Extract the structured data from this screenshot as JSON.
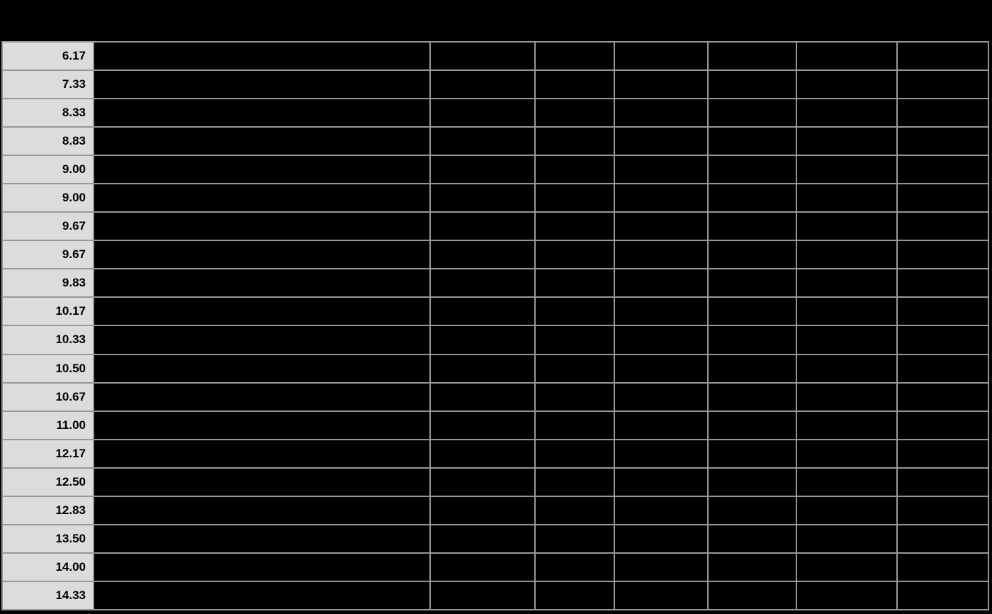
{
  "page": {
    "background_color": "#000000",
    "border_color": "#989898",
    "row_header_bg_color": "#dcdcdc",
    "row_header_text_color": "#000000"
  },
  "header": {
    "title": ""
  },
  "table": {
    "visible_column_index": 0,
    "column_count": 8,
    "row_count": 20,
    "row_header_values": [
      "6.17",
      "7.33",
      "8.33",
      "8.83",
      "9.00",
      "9.00",
      "9.67",
      "9.67",
      "9.83",
      "10.17",
      "10.33",
      "10.50",
      "10.67",
      "11.00",
      "12.17",
      "12.50",
      "12.83",
      "13.50",
      "14.00",
      "14.33"
    ]
  },
  "chart_data": {
    "type": "table",
    "title": "",
    "columns": [
      "",
      "",
      "",
      "",
      "",
      "",
      "",
      ""
    ],
    "first_column_values": [
      6.17,
      7.33,
      8.33,
      8.83,
      9.0,
      9.0,
      9.67,
      9.67,
      9.83,
      10.17,
      10.33,
      10.5,
      10.67,
      11.0,
      12.17,
      12.5,
      12.83,
      13.5,
      14.0,
      14.33
    ]
  }
}
